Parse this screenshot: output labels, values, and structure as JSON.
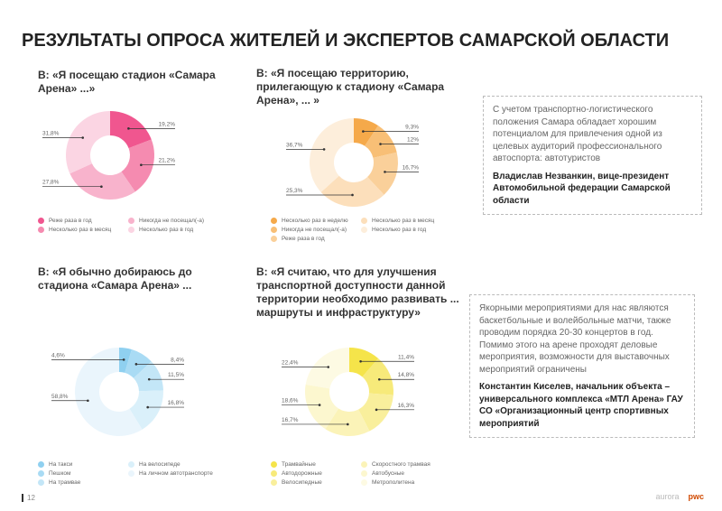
{
  "title": "РЕЗУЛЬТАТЫ ОПРОСА ЖИТЕЛЕЙ И ЭКСПЕРТОВ САМАРСКОЙ ОБЛАСТИ",
  "page_number": "12",
  "logos": [
    "aurora",
    "pwc"
  ],
  "quotes": [
    {
      "text": "С учетом транспортно-логистического положения Самара обладает хорошим потенциалом для привлечения одной из целевых аудиторий профессионального автоспорта: автотуристов",
      "author": "Владислав Незванкин, вице-президент Автомобильной федерации Самарской области"
    },
    {
      "text": "Якорными мероприятиями для нас являются баскетбольные и волейбольные матчи, также проводим порядка 20-30 концертов в год. Помимо этого на арене проходят деловые мероприятия, возможности для выставочных мероприятий ограничены",
      "author": "Константин Киселев, начальник объекта – универсального комплекса «МТЛ Арена» ГАУ СО «Организационный центр спортивных мероприятий"
    }
  ],
  "chart_data": [
    {
      "type": "pie",
      "title": "В: «Я посещаю стадион «Самара Арена» ...»",
      "values": [
        19.2,
        21.2,
        27.8,
        31.8
      ],
      "value_labels": [
        "19,2%",
        "21,2%",
        "27,8%",
        "31,8%"
      ],
      "legend": [
        "Реже раза в год",
        "Несколько раз в месяц",
        "Никогда не посещал(-а)",
        "Несколько раз в год"
      ],
      "colors": [
        "#f0568f",
        "#f58bb0",
        "#f8b3cc",
        "#fbd5e3"
      ]
    },
    {
      "type": "pie",
      "title": "В: «Я посещаю территорию, прилегающую к стадиону «Самара Арена», ... »",
      "values": [
        9.3,
        12,
        16.7,
        25.3,
        36.7
      ],
      "value_labels": [
        "9,3%",
        "12%",
        "16,7%",
        "25,3%",
        "36,7%"
      ],
      "legend": [
        "Несколько раз в неделю",
        "Никогда не посещал(-а)",
        "Реже раза в год",
        "Несколько раз в месяц",
        "Несколько раз в год"
      ],
      "colors": [
        "#f5a94a",
        "#f8bf76",
        "#fad09a",
        "#fcdfbb",
        "#fdeedb"
      ]
    },
    {
      "type": "pie",
      "title": "В: «Я обычно добираюсь до стадиона «Самара Арена» ...",
      "values": [
        4.6,
        8.4,
        11.5,
        16.8,
        58.8
      ],
      "value_labels": [
        "4,6%",
        "8,4%",
        "11,5%",
        "16,8%",
        "58,8%"
      ],
      "legend": [
        "На такси",
        "Пешком",
        "На трамвае",
        "На велосипеде",
        "На личном автотранспорте"
      ],
      "colors": [
        "#8fd0f0",
        "#a9dbf4",
        "#c3e6f7",
        "#daf0fa",
        "#eaf5fc"
      ]
    },
    {
      "type": "pie",
      "title": "В: «Я считаю, что для улучшения транспортной доступности данной территории необходимо развивать ... маршруты и инфраструктуру»",
      "values": [
        11.4,
        14.8,
        16.3,
        16.7,
        18.6,
        22.4
      ],
      "value_labels": [
        "11,4%",
        "14,8%",
        "16,3%",
        "16,7%",
        "18,6%",
        "22,4%"
      ],
      "legend": [
        "Трамвайные",
        "Автодорожные",
        "Велосипедные",
        "Скоростного трамвая",
        "Автобусные",
        "Метрополитена"
      ],
      "colors": [
        "#f5e44a",
        "#f7ea7a",
        "#f9ef9c",
        "#fbf3b8",
        "#fcf7cf",
        "#fdfae3"
      ]
    }
  ]
}
